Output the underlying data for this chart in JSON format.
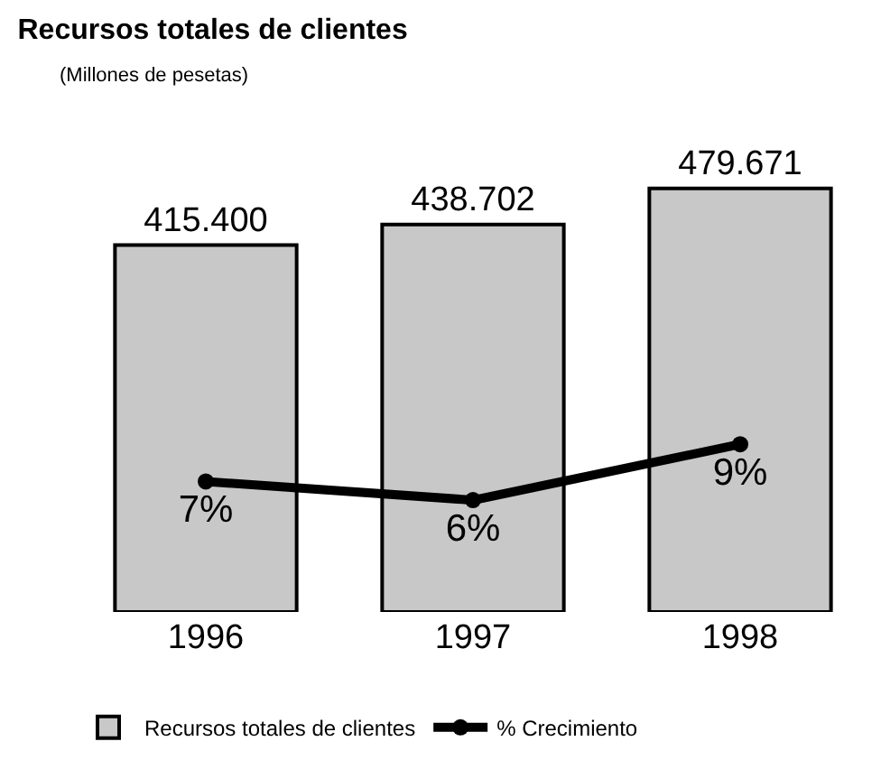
{
  "chart_data": {
    "type": "bar",
    "title": "Recursos totales de clientes",
    "subtitle": "(Millones de pesetas)",
    "categories": [
      "1996",
      "1997",
      "1998"
    ],
    "series": [
      {
        "name": "Recursos totales de clientes",
        "color": "#c8c8c8",
        "values": [
          415400,
          438702,
          479671
        ],
        "value_labels": [
          "415.400",
          "438.702",
          "479.671"
        ]
      },
      {
        "name": "% Crecimiento",
        "type": "line",
        "axis": "y2",
        "color": "#000000",
        "values": [
          7,
          6,
          9
        ],
        "value_labels": [
          "7%",
          "6%",
          "9%"
        ]
      }
    ],
    "tick_labels": "x",
    "grid": false,
    "legend": "bottom",
    "marker": "circle",
    "line_style": "solid"
  }
}
